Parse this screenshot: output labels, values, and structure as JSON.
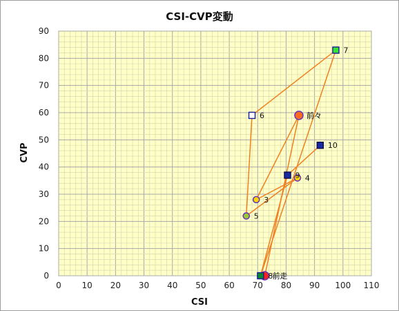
{
  "chart_data": {
    "type": "scatter",
    "title": "CSI-CVP変動",
    "xlabel": "CSI",
    "ylabel": "CVP",
    "xlim": [
      0,
      110
    ],
    "ylim": [
      0,
      90
    ],
    "xticks": [
      0,
      10,
      20,
      30,
      40,
      50,
      60,
      70,
      80,
      90,
      100,
      110
    ],
    "yticks": [
      0,
      10,
      20,
      30,
      40,
      50,
      60,
      70,
      80,
      90
    ],
    "grid": true,
    "background": "#ffffc8",
    "line_color": "#f08020",
    "points": [
      {
        "label": "前走",
        "x": 72.5,
        "y": 0,
        "shape": "circle",
        "fill": "#ff2020",
        "stroke": "#6a3ab0",
        "size": "large"
      },
      {
        "label": "前々",
        "x": 84.5,
        "y": 59,
        "shape": "circle",
        "fill": "#ff6a20",
        "stroke": "#6a3ab0",
        "size": "large"
      },
      {
        "label": "3",
        "x": 69.5,
        "y": 28,
        "shape": "circle",
        "fill": "#ffd700",
        "stroke": "#6a3ab0",
        "size": "small"
      },
      {
        "label": "4",
        "x": 84,
        "y": 36,
        "shape": "circle",
        "fill": "#ffd700",
        "stroke": "#6a3ab0",
        "size": "small"
      },
      {
        "label": "5",
        "x": 66,
        "y": 22,
        "shape": "circle",
        "fill": "#9acd32",
        "stroke": "#6a3ab0",
        "size": "small"
      },
      {
        "label": "6",
        "x": 68,
        "y": 59,
        "shape": "square",
        "fill": "#ffffff",
        "stroke": "#1a1a9a",
        "size": "medium"
      },
      {
        "label": "7",
        "x": 97.5,
        "y": 83,
        "shape": "square",
        "fill": "#32e632",
        "stroke": "#1a1a9a",
        "size": "medium"
      },
      {
        "label": "8",
        "x": 71,
        "y": 0,
        "shape": "square",
        "fill": "#0a8a2a",
        "stroke": "#1a1a9a",
        "size": "medium"
      },
      {
        "label": "9",
        "x": 80.5,
        "y": 37,
        "shape": "square",
        "fill": "#1a2aa0",
        "stroke": "#0a0a50",
        "size": "medium"
      },
      {
        "label": "10",
        "x": 92,
        "y": 48,
        "shape": "square",
        "fill": "#1a2aa0",
        "stroke": "#0a0a50",
        "size": "medium"
      }
    ]
  }
}
